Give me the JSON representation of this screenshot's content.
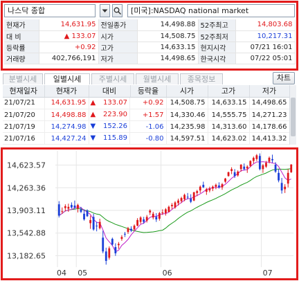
{
  "toolbar": {
    "symbol_name": "나스닥 종합",
    "market_name": "[미국]:NASDAQ national market"
  },
  "quote": {
    "rows": [
      [
        {
          "t": "현재가",
          "c": "lbl"
        },
        {
          "t": "14,631.95",
          "c": "num red"
        },
        {
          "t": "전일종가",
          "c": "lbl"
        },
        {
          "t": "14,498.88",
          "c": "num"
        },
        {
          "t": "52주최고",
          "c": "lbl"
        },
        {
          "t": "14,803.68",
          "c": "num red"
        }
      ],
      [
        {
          "t": "대  비",
          "c": "lbl"
        },
        {
          "t": "▲       133.07",
          "c": "num red"
        },
        {
          "t": "시가",
          "c": "lbl"
        },
        {
          "t": "14,508.75",
          "c": "num"
        },
        {
          "t": "52주최저",
          "c": "lbl"
        },
        {
          "t": "10,217.31",
          "c": "num blue"
        }
      ],
      [
        {
          "t": "등락률",
          "c": "lbl"
        },
        {
          "t": "+0.92",
          "c": "num red"
        },
        {
          "t": "고가",
          "c": "lbl"
        },
        {
          "t": "14,633.15",
          "c": "num"
        },
        {
          "t": "현지시각",
          "c": "lbl"
        },
        {
          "t": "07/21 16:01",
          "c": "num"
        }
      ],
      [
        {
          "t": "거래량",
          "c": "lbl"
        },
        {
          "t": "402,766,191",
          "c": "num"
        },
        {
          "t": "저가",
          "c": "lbl"
        },
        {
          "t": "14,498.65",
          "c": "num"
        },
        {
          "t": "한국시각",
          "c": "lbl"
        },
        {
          "t": "07/22 05:01",
          "c": "num"
        }
      ]
    ]
  },
  "tabs": [
    "분별시세",
    "일별시세",
    "주별시세",
    "월별시세",
    "종목정보"
  ],
  "active_tab": 1,
  "chart_button": "차트",
  "daily": {
    "headers": [
      "현재일자",
      "현재가",
      "대비",
      "등락율",
      "시가",
      "고가",
      "저가"
    ],
    "rows": [
      {
        "date": "21/07/21",
        "close": "14,631.95",
        "arrow": "▲",
        "change": "133.07",
        "pct": "+0.92",
        "open": "14,508.75",
        "high": "14,633.15",
        "low": "14,498.65",
        "dir": "up"
      },
      {
        "date": "21/07/20",
        "close": "14,498.88",
        "arrow": "▲",
        "change": "223.90",
        "pct": "+1.57",
        "open": "14,330.46",
        "high": "14,555.75",
        "low": "14,271.23",
        "dir": "up"
      },
      {
        "date": "21/07/19",
        "close": "14,274.98",
        "arrow": "▼",
        "change": "152.26",
        "pct": "-1.06",
        "open": "14,235.98",
        "high": "14,313.60",
        "low": "14,178.66",
        "dir": "down"
      },
      {
        "date": "21/07/16",
        "close": "14,427.24",
        "arrow": "▼",
        "change": "115.89",
        "pct": "-0.80",
        "open": "14,597.51",
        "high": "14,623.02",
        "low": "14,413.32",
        "dir": "down"
      }
    ]
  },
  "colors": {
    "up": "#e0181b",
    "down": "#1a3fd8",
    "ma_short": "#c020c8",
    "ma_long": "#1a9a1a",
    "frame": "#e21b1b"
  },
  "chart_data": {
    "type": "candlestick",
    "y_ticks": [
      "14,623.57",
      "14,263.36",
      "13,903.11",
      "13,542.88",
      "13,182.65"
    ],
    "y_tick_values": [
      14623.57,
      14263.36,
      13903.11,
      13542.88,
      13182.65
    ],
    "ylim": [
      13000,
      14850
    ],
    "x_ticks": [
      {
        "label": "04",
        "index": 0
      },
      {
        "label": "05",
        "index": 6
      },
      {
        "label": "06",
        "index": 33
      },
      {
        "label": "07",
        "index": 65
      }
    ],
    "ohlc": [
      [
        14000,
        14050,
        13790,
        13820
      ],
      [
        13880,
        13950,
        13850,
        13890
      ],
      [
        13940,
        14000,
        13890,
        13970
      ],
      [
        13930,
        14010,
        13880,
        13960
      ],
      [
        13990,
        14030,
        13930,
        13950
      ],
      [
        13980,
        14060,
        13920,
        13950
      ],
      [
        13930,
        14010,
        13870,
        13990
      ],
      [
        13920,
        13960,
        13860,
        13880
      ],
      [
        13850,
        13920,
        13740,
        13760
      ],
      [
        13900,
        13920,
        13800,
        13810
      ],
      [
        13700,
        13820,
        13610,
        13750
      ],
      [
        13800,
        13850,
        13580,
        13600
      ],
      [
        13660,
        13720,
        13570,
        13650
      ],
      [
        13620,
        13770,
        13600,
        13720
      ],
      [
        13470,
        13580,
        13220,
        13250
      ],
      [
        13250,
        13310,
        13040,
        13100
      ],
      [
        13150,
        13330,
        13120,
        13300
      ],
      [
        13450,
        13470,
        13340,
        13360
      ],
      [
        13320,
        13380,
        13180,
        13220
      ],
      [
        13350,
        13400,
        13290,
        13370
      ],
      [
        13450,
        13510,
        13420,
        13480
      ],
      [
        13530,
        13560,
        13480,
        13520
      ],
      [
        13560,
        13640,
        13530,
        13620
      ],
      [
        13610,
        13650,
        13560,
        13580
      ],
      [
        13600,
        13680,
        13580,
        13660
      ],
      [
        13660,
        13780,
        13650,
        13750
      ],
      [
        13720,
        13810,
        13690,
        13790
      ],
      [
        13760,
        13800,
        13690,
        13720
      ],
      [
        13740,
        13830,
        13710,
        13800
      ],
      [
        13870,
        13920,
        13830,
        13900
      ],
      [
        13790,
        13880,
        13760,
        13850
      ],
      [
        13800,
        13860,
        13720,
        13760
      ],
      [
        13770,
        13880,
        13740,
        13860
      ],
      [
        13860,
        13920,
        13830,
        13870
      ],
      [
        13860,
        13940,
        13820,
        13920
      ],
      [
        13880,
        13980,
        13870,
        13960
      ],
      [
        13970,
        14020,
        13920,
        13990
      ],
      [
        13950,
        14050,
        13930,
        14030
      ],
      [
        14020,
        14090,
        13980,
        14060
      ],
      [
        14050,
        14120,
        14020,
        14100
      ],
      [
        14080,
        14170,
        14050,
        14150
      ],
      [
        14120,
        14180,
        14080,
        14110
      ],
      [
        14090,
        14160,
        14020,
        14040
      ],
      [
        14060,
        14200,
        14050,
        14190
      ],
      [
        14180,
        14230,
        14130,
        14210
      ],
      [
        14220,
        14300,
        14180,
        14280
      ],
      [
        14310,
        14360,
        14260,
        14270
      ],
      [
        14200,
        14260,
        14150,
        14240
      ],
      [
        14220,
        14280,
        14190,
        14250
      ],
      [
        14250,
        14300,
        14210,
        14280
      ],
      [
        14280,
        14330,
        14240,
        14310
      ],
      [
        14300,
        14350,
        14250,
        14270
      ],
      [
        14270,
        14340,
        14230,
        14320
      ],
      [
        14360,
        14420,
        14340,
        14410
      ],
      [
        14450,
        14520,
        14440,
        14510
      ],
      [
        14530,
        14590,
        14480,
        14560
      ],
      [
        14510,
        14560,
        14420,
        14450
      ],
      [
        14460,
        14540,
        14440,
        14520
      ],
      [
        14560,
        14640,
        14520,
        14630
      ],
      [
        14600,
        14650,
        14540,
        14560
      ],
      [
        14570,
        14620,
        14500,
        14600
      ],
      [
        14610,
        14700,
        14590,
        14690
      ],
      [
        14690,
        14760,
        14650,
        14740
      ],
      [
        14720,
        14800,
        14690,
        14780
      ],
      [
        14770,
        14810,
        14540,
        14560
      ],
      [
        14560,
        14640,
        14500,
        14620
      ],
      [
        14600,
        14690,
        14580,
        14660
      ],
      [
        14680,
        14760,
        14650,
        14740
      ],
      [
        14720,
        14790,
        14660,
        14700
      ],
      [
        14630,
        14670,
        14500,
        14520
      ],
      [
        14500,
        14560,
        14350,
        14380
      ],
      [
        14340,
        14420,
        14170,
        14220
      ],
      [
        14240,
        14320,
        14180,
        14280
      ],
      [
        14330,
        14560,
        14270,
        14500
      ],
      [
        14510,
        14640,
        14500,
        14632
      ]
    ]
  }
}
